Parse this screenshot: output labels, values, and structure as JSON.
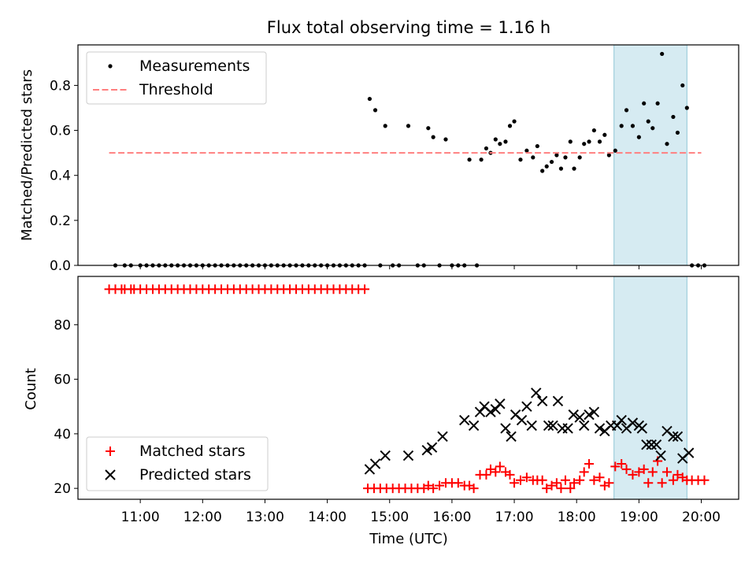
{
  "chart_data": [
    {
      "type": "scatter",
      "title": "Flux total observing time = 1.16 h",
      "ylabel": "Matched/Predicted stars",
      "xlim": [
        10.0,
        20.6
      ],
      "ylim": [
        0.0,
        0.98
      ],
      "yticks": [
        0.0,
        0.2,
        0.4,
        0.6,
        0.8
      ],
      "ytick_labels": [
        "0.0",
        "0.2",
        "0.4",
        "0.6",
        "0.8"
      ],
      "shaded_span": [
        18.6,
        19.77
      ],
      "shaded_color": "#add8e6",
      "legend": {
        "position": "upper-left",
        "entries": [
          "Measurements",
          "Threshold"
        ]
      },
      "series": [
        {
          "name": "Measurements",
          "marker": "dot",
          "color": "#000000",
          "x": [
            10.6,
            10.75,
            10.85,
            11.0,
            11.1,
            11.2,
            11.3,
            11.4,
            11.5,
            11.6,
            11.7,
            11.8,
            11.9,
            12.0,
            12.1,
            12.2,
            12.3,
            12.4,
            12.5,
            12.6,
            12.7,
            12.8,
            12.9,
            13.0,
            13.1,
            13.2,
            13.3,
            13.4,
            13.5,
            13.6,
            13.7,
            13.8,
            13.9,
            14.0,
            14.1,
            14.2,
            14.3,
            14.4,
            14.5,
            14.6,
            14.68,
            14.77,
            14.85,
            14.93,
            15.05,
            15.15,
            15.3,
            15.45,
            15.55,
            15.62,
            15.7,
            15.8,
            15.9,
            16.0,
            16.1,
            16.2,
            16.28,
            16.4,
            16.47,
            16.55,
            16.62,
            16.7,
            16.77,
            16.86,
            16.93,
            17.0,
            17.1,
            17.2,
            17.3,
            17.37,
            17.45,
            17.52,
            17.6,
            17.68,
            17.75,
            17.82,
            17.9,
            17.96,
            18.05,
            18.12,
            18.2,
            18.28,
            18.37,
            18.45,
            18.52,
            18.62,
            18.72,
            18.8,
            18.9,
            19.0,
            19.08,
            19.15,
            19.22,
            19.3,
            19.37,
            19.45,
            19.55,
            19.62,
            19.7,
            19.77,
            19.85,
            19.95,
            20.05
          ],
          "y": [
            0,
            0,
            0,
            0,
            0,
            0,
            0,
            0,
            0,
            0,
            0,
            0,
            0,
            0,
            0,
            0,
            0,
            0,
            0,
            0,
            0,
            0,
            0,
            0,
            0,
            0,
            0,
            0,
            0,
            0,
            0,
            0,
            0,
            0,
            0,
            0,
            0,
            0,
            0,
            0,
            0.74,
            0.69,
            0,
            0.62,
            0,
            0,
            0.62,
            0,
            0,
            0.61,
            0.57,
            0,
            0.56,
            0,
            0,
            0,
            0.47,
            0,
            0.47,
            0.52,
            0.5,
            0.56,
            0.54,
            0.55,
            0.62,
            0.64,
            0.47,
            0.51,
            0.48,
            0.53,
            0.42,
            0.44,
            0.46,
            0.49,
            0.43,
            0.48,
            0.55,
            0.43,
            0.48,
            0.54,
            0.55,
            0.6,
            0.55,
            0.58,
            0.49,
            0.51,
            0.62,
            0.69,
            0.62,
            0.57,
            0.72,
            0.64,
            0.61,
            0.72,
            0.94,
            0.54,
            0.66,
            0.59,
            0.8,
            0.7,
            0,
            0,
            0
          ]
        },
        {
          "name": "Threshold",
          "marker": "dashed-line",
          "color": "#ff7f7f",
          "x": [
            10.5,
            20.0
          ],
          "y": [
            0.5,
            0.5
          ]
        }
      ]
    },
    {
      "type": "scatter",
      "xlabel": "Time (UTC)",
      "ylabel": "Count",
      "xlim": [
        10.0,
        20.6
      ],
      "ylim": [
        16,
        97.7
      ],
      "xticks": [
        11,
        12,
        13,
        14,
        15,
        16,
        17,
        18,
        19,
        20
      ],
      "xtick_labels": [
        "11:00",
        "12:00",
        "13:00",
        "14:00",
        "15:00",
        "16:00",
        "17:00",
        "18:00",
        "19:00",
        "20:00"
      ],
      "yticks": [
        20,
        40,
        60,
        80
      ],
      "ytick_labels": [
        "20",
        "40",
        "60",
        "80"
      ],
      "shaded_span": [
        18.6,
        19.77
      ],
      "shaded_color": "#add8e6",
      "legend": {
        "position": "lower-left",
        "entries": [
          "Matched stars",
          "Predicted stars"
        ]
      },
      "series": [
        {
          "name": "Matched stars",
          "marker": "plus",
          "color": "#ff0000",
          "x": [
            10.5,
            10.6,
            10.7,
            10.75,
            10.85,
            10.9,
            11.0,
            11.1,
            11.2,
            11.3,
            11.4,
            11.5,
            11.6,
            11.7,
            11.8,
            11.9,
            12.0,
            12.1,
            12.2,
            12.3,
            12.4,
            12.5,
            12.6,
            12.7,
            12.8,
            12.9,
            13.0,
            13.1,
            13.2,
            13.3,
            13.4,
            13.5,
            13.6,
            13.7,
            13.8,
            13.9,
            14.0,
            14.1,
            14.2,
            14.3,
            14.4,
            14.5,
            14.6,
            14.65,
            14.75,
            14.85,
            14.95,
            15.05,
            15.15,
            15.25,
            15.35,
            15.45,
            15.55,
            15.62,
            15.7,
            15.8,
            15.9,
            16.0,
            16.1,
            16.2,
            16.28,
            16.35,
            16.45,
            16.55,
            16.62,
            16.7,
            16.77,
            16.86,
            16.93,
            17.0,
            17.1,
            17.2,
            17.3,
            17.37,
            17.45,
            17.52,
            17.6,
            17.68,
            17.75,
            17.82,
            17.9,
            17.96,
            18.05,
            18.12,
            18.2,
            18.28,
            18.37,
            18.45,
            18.52,
            18.62,
            18.72,
            18.8,
            18.9,
            19.0,
            19.08,
            19.15,
            19.22,
            19.3,
            19.37,
            19.45,
            19.55,
            19.62,
            19.7,
            19.77,
            19.85,
            19.95,
            20.05
          ],
          "y": [
            93,
            93,
            93,
            93,
            93,
            93,
            93,
            93,
            93,
            93,
            93,
            93,
            93,
            93,
            93,
            93,
            93,
            93,
            93,
            93,
            93,
            93,
            93,
            93,
            93,
            93,
            93,
            93,
            93,
            93,
            93,
            93,
            93,
            93,
            93,
            93,
            93,
            93,
            93,
            93,
            93,
            93,
            93,
            20,
            20,
            20,
            20,
            20,
            20,
            20,
            20,
            20,
            20,
            21,
            20,
            21,
            22,
            22,
            22,
            21,
            21,
            20,
            25,
            25,
            27,
            26,
            28,
            26,
            25,
            22,
            23,
            24,
            23,
            23,
            23,
            20,
            21,
            22,
            20,
            23,
            20,
            22,
            23,
            26,
            29,
            23,
            24,
            21,
            22,
            28,
            29,
            27,
            25,
            26,
            27,
            22,
            26,
            30,
            22,
            26,
            23,
            25,
            24,
            23,
            23,
            23,
            23
          ]
        },
        {
          "name": "Predicted stars",
          "marker": "x",
          "color": "#000000",
          "x": [
            14.68,
            14.77,
            14.93,
            15.3,
            15.6,
            15.68,
            15.85,
            16.2,
            16.35,
            16.45,
            16.52,
            16.62,
            16.7,
            16.77,
            16.86,
            16.95,
            17.02,
            17.12,
            17.2,
            17.28,
            17.35,
            17.45,
            17.55,
            17.62,
            17.7,
            17.77,
            17.86,
            17.95,
            18.05,
            18.12,
            18.2,
            18.28,
            18.37,
            18.45,
            18.55,
            18.65,
            18.72,
            18.8,
            18.9,
            19.0,
            19.05,
            19.12,
            19.2,
            19.28,
            19.35,
            19.45,
            19.55,
            19.62,
            19.7,
            19.8
          ],
          "y": [
            27,
            29,
            32,
            32,
            34,
            35,
            39,
            45,
            43,
            48,
            50,
            48,
            49,
            51,
            42,
            39,
            47,
            45,
            50,
            43,
            55,
            52,
            43,
            43,
            52,
            42,
            42,
            47,
            46,
            43,
            47,
            48,
            42,
            41,
            43,
            43,
            45,
            42,
            44,
            43,
            42,
            36,
            36,
            36,
            32,
            41,
            39,
            39,
            31,
            33
          ]
        }
      ]
    }
  ]
}
